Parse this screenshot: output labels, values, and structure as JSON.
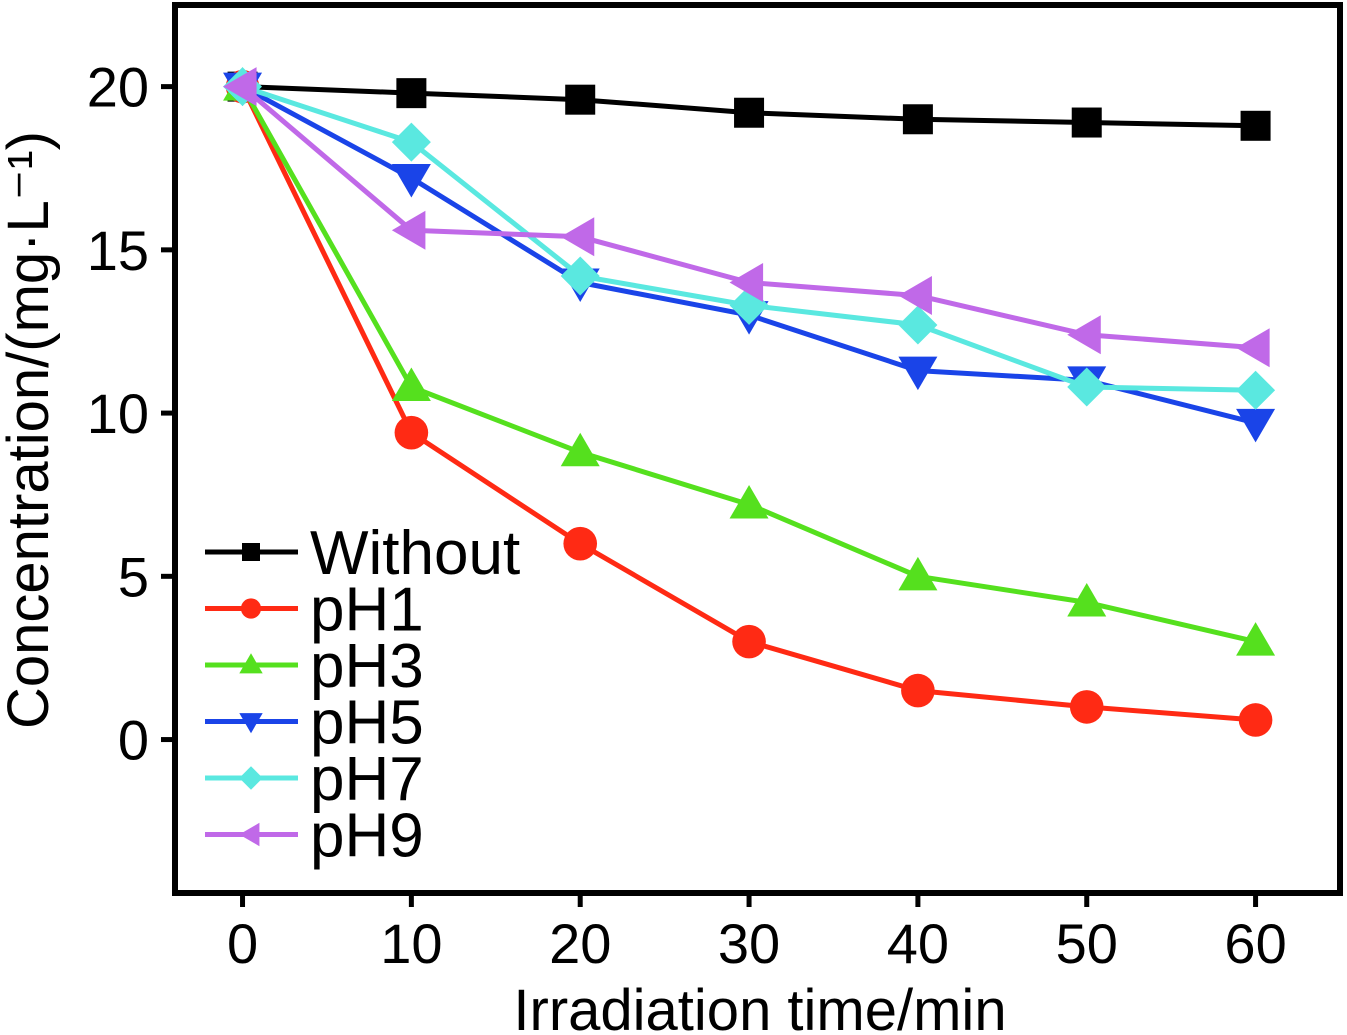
{
  "chart_data": {
    "type": "line",
    "title": "",
    "xlabel": "Irradiation time/min",
    "ylabel": "Concentration/(mg·L⁻¹)",
    "x": [
      0,
      10,
      20,
      30,
      40,
      50,
      60
    ],
    "xlim": [
      -4,
      65
    ],
    "ylim": [
      -4.7,
      22.5
    ],
    "xticks": [
      "0",
      "10",
      "20",
      "30",
      "40",
      "50",
      "60"
    ],
    "yticks": [
      "0",
      "5",
      "10",
      "15",
      "20"
    ],
    "grid": false,
    "legend_position": "bottom-left",
    "series": [
      {
        "name": "Without",
        "color": "#000000",
        "marker": "square",
        "values": [
          20.0,
          19.8,
          19.6,
          19.2,
          19.0,
          18.9,
          18.8
        ]
      },
      {
        "name": "pH1",
        "color": "#ff2a14",
        "marker": "circle",
        "values": [
          20.0,
          9.4,
          6.0,
          3.0,
          1.5,
          1.0,
          0.6
        ]
      },
      {
        "name": "pH3",
        "color": "#55e01e",
        "marker": "triangle-up",
        "values": [
          20.0,
          10.8,
          8.8,
          7.2,
          5.0,
          4.2,
          3.0
        ]
      },
      {
        "name": "pH5",
        "color": "#1a44e8",
        "marker": "triangle-down",
        "values": [
          20.0,
          17.2,
          14.0,
          13.0,
          11.3,
          11.0,
          9.7
        ]
      },
      {
        "name": "pH7",
        "color": "#5ae8e0",
        "marker": "diamond",
        "values": [
          20.0,
          18.3,
          14.2,
          13.3,
          12.7,
          10.8,
          10.7
        ]
      },
      {
        "name": "pH9",
        "color": "#c069e8",
        "marker": "triangle-left",
        "values": [
          20.0,
          15.6,
          15.4,
          14.0,
          13.6,
          12.4,
          12.0
        ]
      }
    ]
  }
}
